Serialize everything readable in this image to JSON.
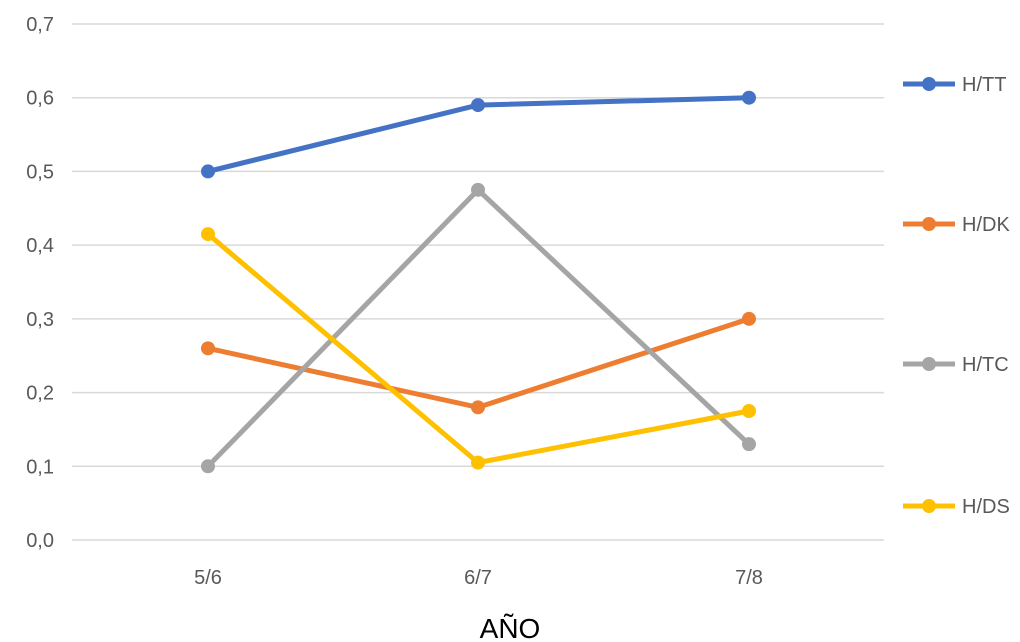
{
  "chart_data": {
    "type": "line",
    "title": "",
    "xlabel": "AÑO",
    "ylabel": "",
    "categories": [
      "5/6",
      "6/7",
      "7/8"
    ],
    "ylim": [
      0,
      0.7
    ],
    "yticks": [
      "0,0",
      "0,1",
      "0,2",
      "0,3",
      "0,4",
      "0,5",
      "0,6",
      "0,7"
    ],
    "grid": true,
    "legend_position": "right",
    "series": [
      {
        "name": "H/TT",
        "color": "#4472C4",
        "values": [
          0.5,
          0.59,
          0.6
        ]
      },
      {
        "name": "H/DK",
        "color": "#ED7D31",
        "values": [
          0.26,
          0.18,
          0.3
        ]
      },
      {
        "name": "H/TC",
        "color": "#A5A5A5",
        "values": [
          0.1,
          0.475,
          0.13
        ]
      },
      {
        "name": "H/DS",
        "color": "#FFC000",
        "values": [
          0.415,
          0.105,
          0.175
        ]
      }
    ]
  }
}
